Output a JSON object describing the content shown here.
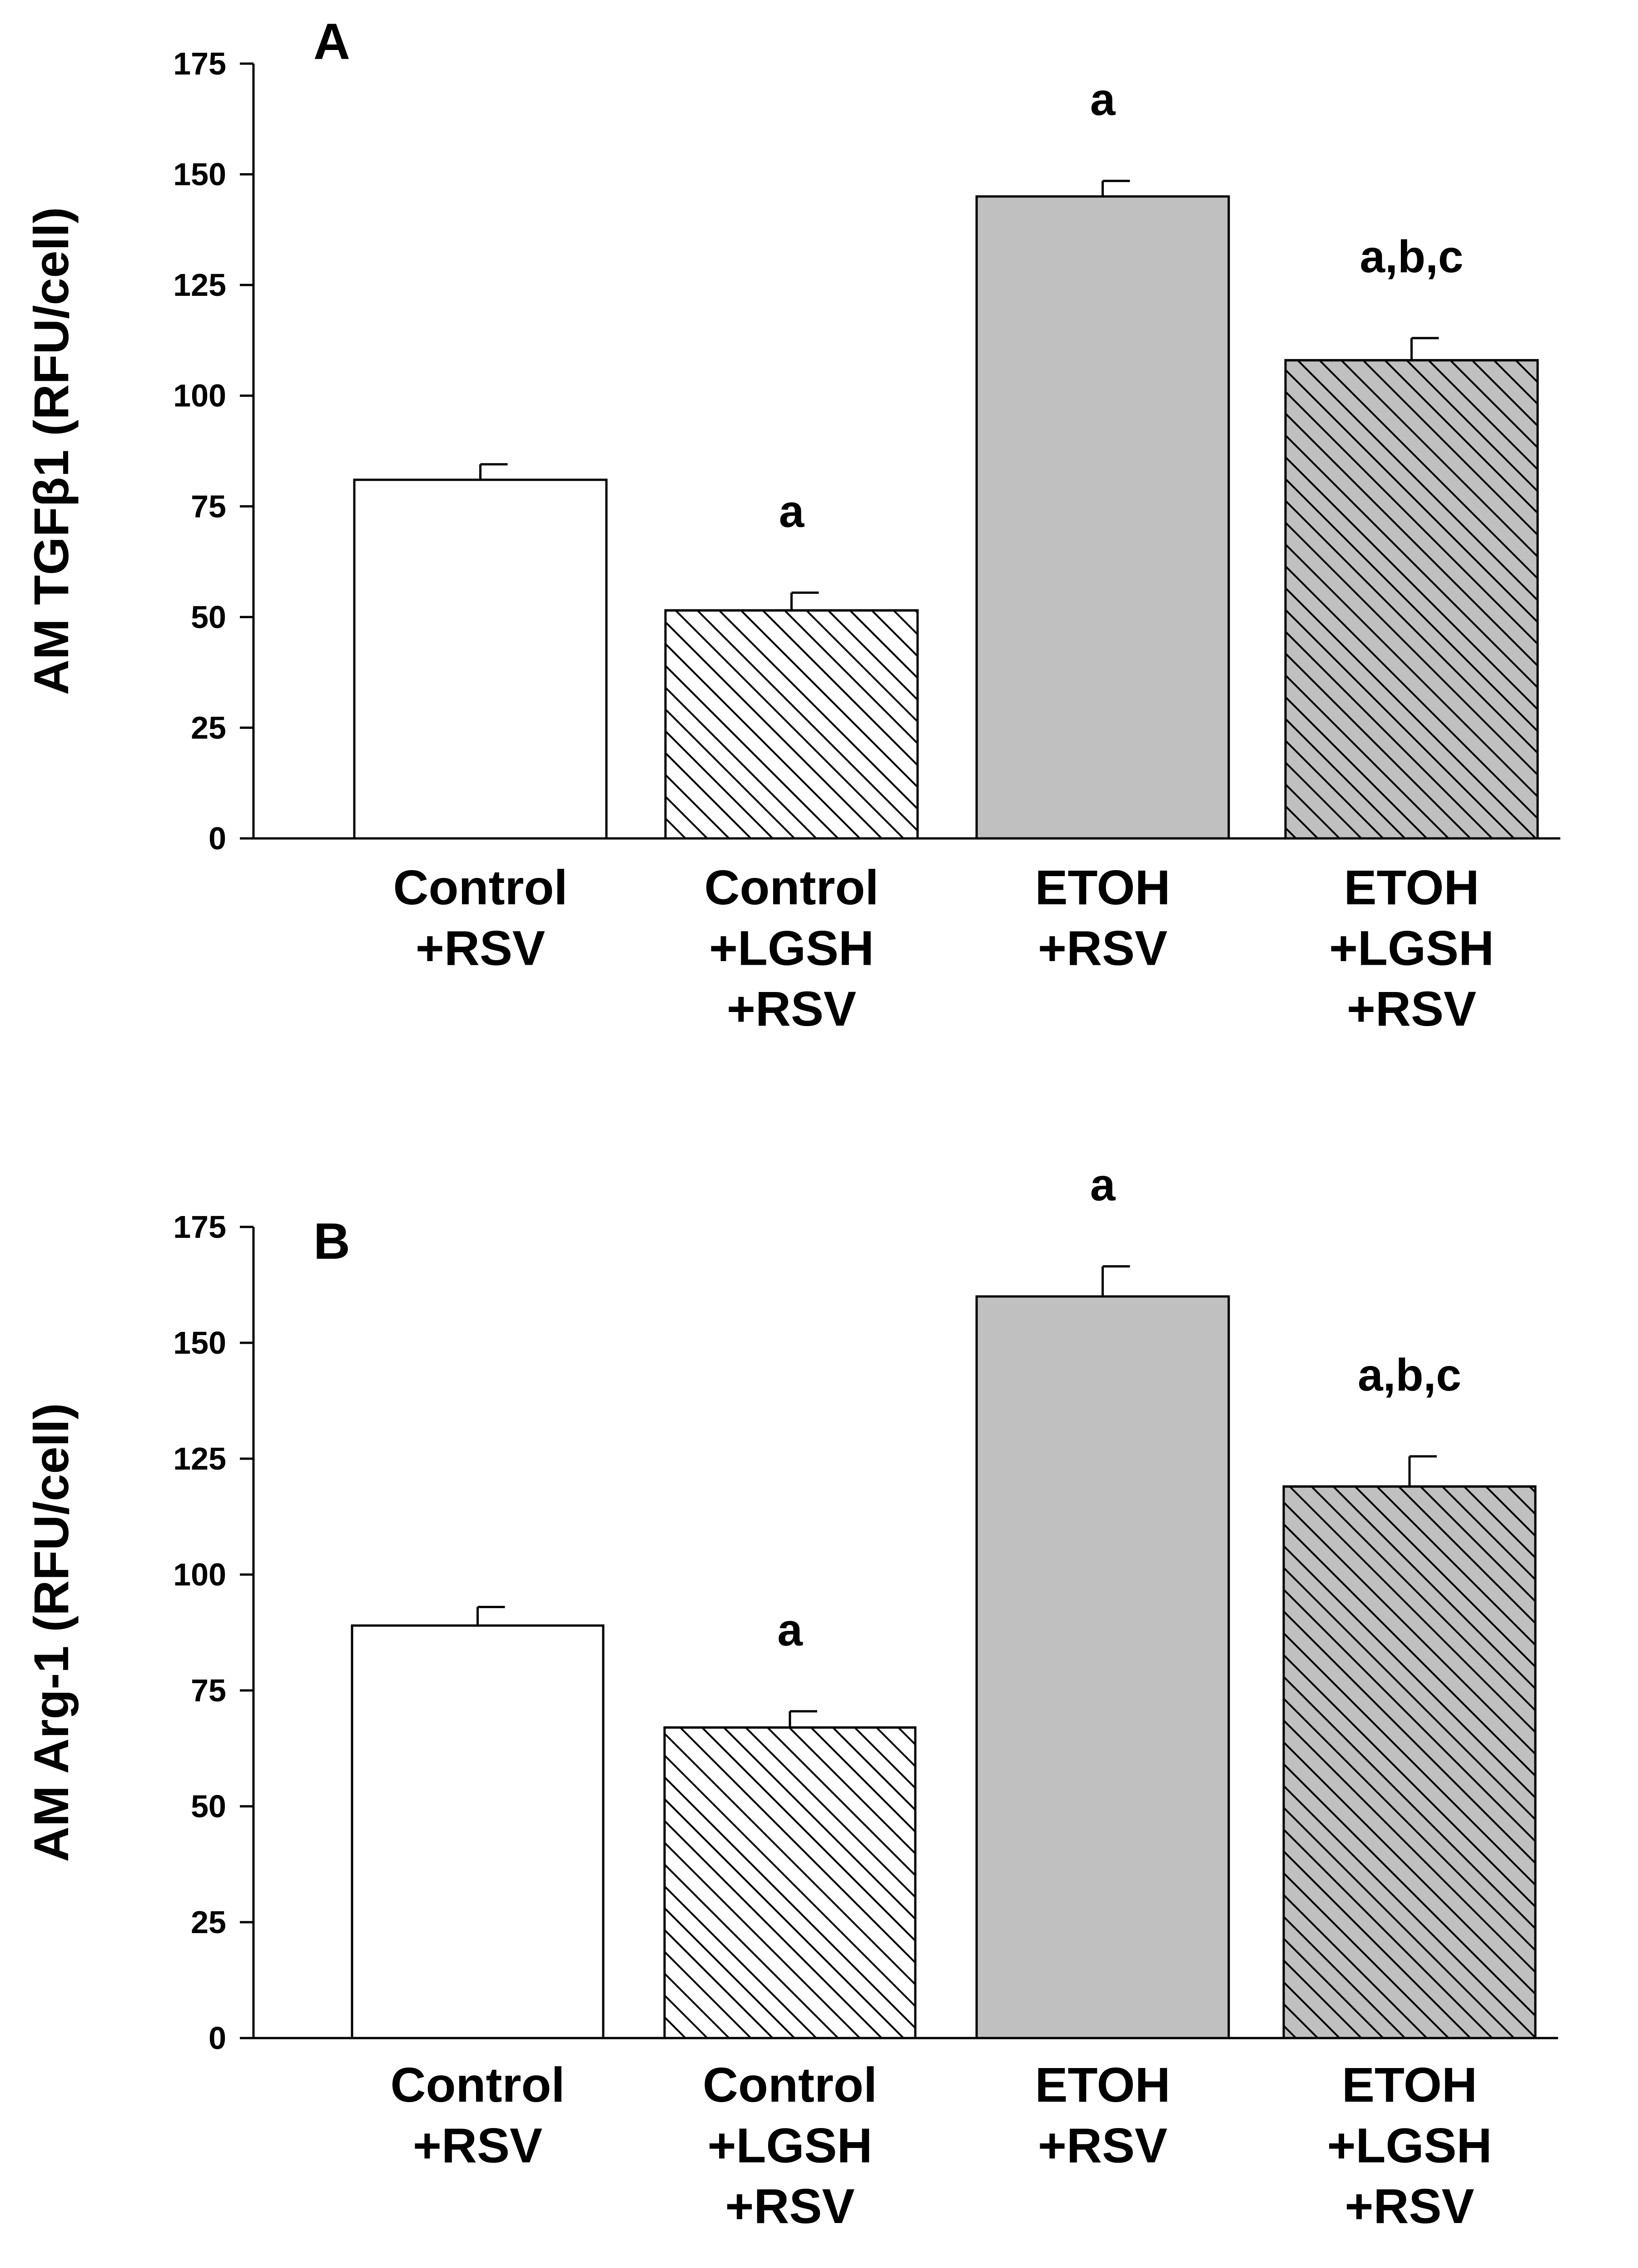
{
  "colors": {
    "axis": "#000000",
    "control_fill": "#ffffff",
    "etoh_fill": "#c0c0c0",
    "hatch": "#000000"
  },
  "chart_data": [
    {
      "type": "bar",
      "panel_label": "A",
      "title": "",
      "xlabel": "",
      "ylabel": "AM TGFβ1 (RFU/cell)",
      "ylim": [
        0,
        175
      ],
      "yticks": [
        0,
        25,
        50,
        75,
        100,
        125,
        150,
        175
      ],
      "grid": false,
      "categories": [
        [
          "Control",
          "+RSV"
        ],
        [
          "Control",
          "+LGSH",
          "+RSV"
        ],
        [
          "ETOH",
          "+RSV"
        ],
        [
          "ETOH",
          "+LGSH",
          "+RSV"
        ]
      ],
      "values": [
        81,
        51.5,
        145,
        108
      ],
      "errors": [
        3.5,
        4,
        3.5,
        5
      ],
      "fills": [
        "white",
        "white",
        "gray",
        "gray"
      ],
      "hatched": [
        false,
        true,
        false,
        true
      ],
      "annotations": [
        "",
        "a",
        "a",
        "a,b,c"
      ]
    },
    {
      "type": "bar",
      "panel_label": "B",
      "title": "",
      "xlabel": "",
      "ylabel": "AM Arg-1 (RFU/cell)",
      "ylim": [
        0,
        175
      ],
      "yticks": [
        0,
        25,
        50,
        75,
        100,
        125,
        150,
        175
      ],
      "grid": false,
      "categories": [
        [
          "Control",
          "+RSV"
        ],
        [
          "Control",
          "+LGSH",
          "+RSV"
        ],
        [
          "ETOH",
          "+RSV"
        ],
        [
          "ETOH",
          "+LGSH",
          "+RSV"
        ]
      ],
      "values": [
        89,
        67,
        160,
        119
      ],
      "errors": [
        4,
        3.5,
        6.5,
        6.5
      ],
      "fills": [
        "white",
        "white",
        "gray",
        "gray"
      ],
      "hatched": [
        false,
        true,
        false,
        true
      ],
      "annotations": [
        "",
        "a",
        "a",
        "a,b,c"
      ]
    }
  ]
}
